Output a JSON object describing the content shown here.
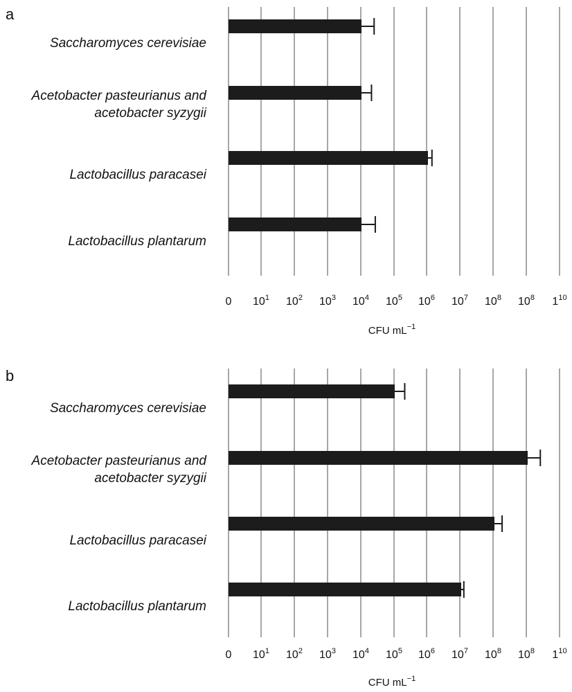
{
  "chart_data": [
    {
      "panel_label": "a",
      "type": "bar",
      "orientation": "horizontal",
      "categories": [
        [
          "Saccharomyces cerevisiae"
        ],
        [
          "Acetobacter pasteurianus and",
          "acetobacter syzygii"
        ],
        [
          "Lactobacillus paracasei"
        ],
        [
          "Lactobacillus plantarum"
        ]
      ],
      "values": [
        10000,
        10000,
        1000000,
        10000
      ],
      "error_upper": [
        24000,
        20000,
        1320000,
        26000
      ],
      "xlabel": {
        "base": "CFU mL",
        "sup": "−1"
      },
      "xticks": [
        {
          "base": "0",
          "sup": ""
        },
        {
          "base": "10",
          "sup": "1"
        },
        {
          "base": "10",
          "sup": "2"
        },
        {
          "base": "10",
          "sup": "3"
        },
        {
          "base": "10",
          "sup": "4"
        },
        {
          "base": "10",
          "sup": "5"
        },
        {
          "base": "10",
          "sup": "6"
        },
        {
          "base": "10",
          "sup": "7"
        },
        {
          "base": "10",
          "sup": "8"
        },
        {
          "base": "10",
          "sup": "8"
        },
        {
          "base": "1",
          "sup": "10"
        }
      ],
      "xscale": "log",
      "grid": true
    },
    {
      "panel_label": "b",
      "type": "bar",
      "orientation": "horizontal",
      "categories": [
        [
          "Saccharomyces cerevisiae"
        ],
        [
          "Acetobacter pasteurianus and",
          "acetobacter syzygii"
        ],
        [
          "Lactobacillus paracasei"
        ],
        [
          "Lactobacillus plantarum"
        ]
      ],
      "values": [
        100000,
        1000000000,
        100000000,
        10000000
      ],
      "error_upper": [
        200000,
        2400000000,
        170000000,
        12000000
      ],
      "xlabel": {
        "base": "CFU mL",
        "sup": "−1"
      },
      "xticks": [
        {
          "base": "0",
          "sup": ""
        },
        {
          "base": "10",
          "sup": "1"
        },
        {
          "base": "10",
          "sup": "2"
        },
        {
          "base": "10",
          "sup": "3"
        },
        {
          "base": "10",
          "sup": "4"
        },
        {
          "base": "10",
          "sup": "5"
        },
        {
          "base": "10",
          "sup": "6"
        },
        {
          "base": "10",
          "sup": "7"
        },
        {
          "base": "10",
          "sup": "8"
        },
        {
          "base": "10",
          "sup": "8"
        },
        {
          "base": "1",
          "sup": "10"
        }
      ],
      "xscale": "log",
      "grid": true
    }
  ]
}
